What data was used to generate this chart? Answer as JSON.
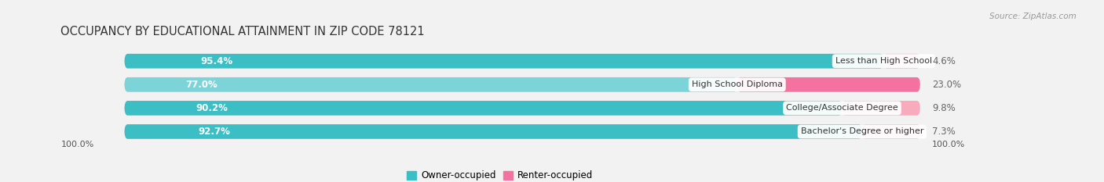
{
  "title": "OCCUPANCY BY EDUCATIONAL ATTAINMENT IN ZIP CODE 78121",
  "source": "Source: ZipAtlas.com",
  "categories": [
    "Less than High School",
    "High School Diploma",
    "College/Associate Degree",
    "Bachelor's Degree or higher"
  ],
  "owner_pct": [
    95.4,
    77.0,
    90.2,
    92.7
  ],
  "renter_pct": [
    4.6,
    23.0,
    9.8,
    7.3
  ],
  "owner_color": "#3BBFC5",
  "owner_color_light": "#7DD4D8",
  "renter_color": "#F472A0",
  "renter_color_light": "#F9ABBE",
  "bg_color": "#f2f2f2",
  "bar_bg_color": "#e0e0e0",
  "title_fontsize": 10.5,
  "label_fontsize": 8.5,
  "cat_fontsize": 8.0,
  "axis_label_fontsize": 8.0,
  "legend_fontsize": 8.5,
  "source_fontsize": 7.5,
  "bottom_labels": [
    "100.0%",
    "100.0%"
  ],
  "total": 100.0
}
